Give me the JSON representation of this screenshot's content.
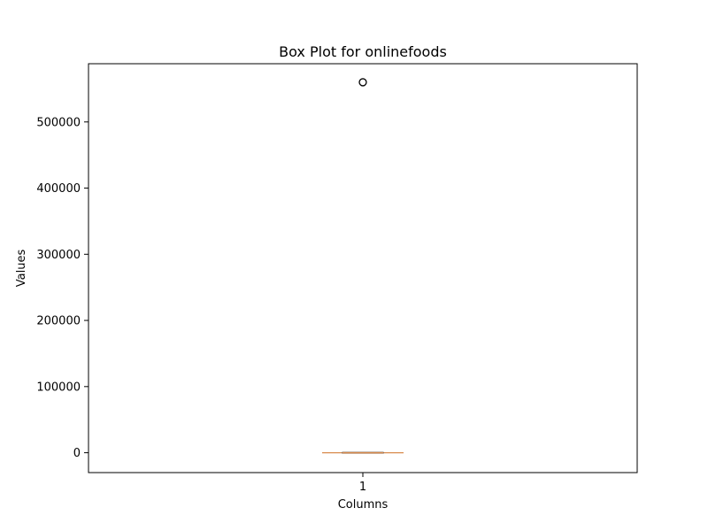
{
  "chart_data": {
    "type": "box",
    "title": "Box Plot for onlinefoods",
    "xlabel": "Columns",
    "ylabel": "Values",
    "categories": [
      "1"
    ],
    "ylim": [
      -30000,
      588000
    ],
    "yticks": [
      0,
      100000,
      200000,
      300000,
      400000,
      500000
    ],
    "ytick_labels": [
      "0",
      "100000",
      "200000",
      "300000",
      "400000",
      "500000"
    ],
    "boxes": [
      {
        "category": "1",
        "whisker_low": 0,
        "q1": 0,
        "median": 0,
        "q3": 0,
        "whisker_high": 0,
        "outliers": [
          560000
        ]
      }
    ],
    "grid": false,
    "colors": {
      "median": "#d8894a",
      "box": "#d8894a",
      "outlier": "#000000",
      "axes": "#000000"
    }
  }
}
